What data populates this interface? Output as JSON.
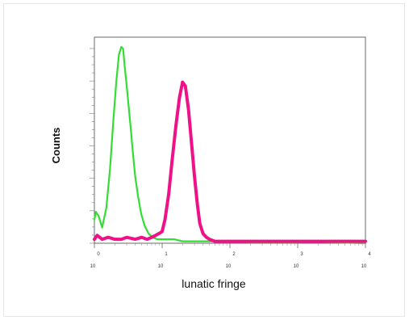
{
  "chart_data": {
    "type": "line",
    "title": "",
    "xlabel": "lunatic fringe",
    "ylabel": "Counts",
    "x_scale": "log",
    "xlim": [
      1,
      10000
    ],
    "ylim": [
      0,
      100
    ],
    "grid": false,
    "legend": "none",
    "x_ticks": [
      {
        "value": 1,
        "label": "10",
        "sup": "0"
      },
      {
        "value": 10,
        "label": "10",
        "sup": "1"
      },
      {
        "value": 100,
        "label": "10",
        "sup": "2"
      },
      {
        "value": 1000,
        "label": "10",
        "sup": "3"
      },
      {
        "value": 10000,
        "label": "10",
        "sup": "4"
      }
    ],
    "series": [
      {
        "color": "#33dd33",
        "x": [
          1.0,
          1.05,
          1.15,
          1.3,
          1.5,
          1.7,
          1.9,
          2.1,
          2.3,
          2.5,
          2.65,
          2.8,
          3.0,
          3.2,
          3.45,
          3.7,
          4.0,
          4.4,
          4.9,
          5.5,
          6.3,
          7.2,
          8.5,
          10,
          12,
          15,
          20,
          30,
          50,
          80,
          100,
          200,
          500,
          1000,
          1500,
          3000,
          10000
        ],
        "y": [
          12,
          16,
          14,
          8,
          18,
          38,
          62,
          82,
          96,
          100,
          99,
          90,
          80,
          70,
          58,
          46,
          34,
          24,
          15,
          9,
          5,
          3,
          2,
          2,
          2,
          2,
          1,
          1,
          1,
          1,
          1,
          0.5,
          0.5,
          0.5,
          1,
          0.5,
          0
        ]
      },
      {
        "color": "#ee1188",
        "x": [
          1.0,
          1.1,
          1.3,
          1.6,
          2,
          2.5,
          3,
          4,
          5,
          6,
          7,
          8,
          9,
          10,
          11,
          12.5,
          14,
          16,
          18,
          20,
          22,
          24.5,
          27,
          30,
          33,
          36,
          40,
          45,
          50,
          60,
          70,
          100,
          200,
          500,
          1000,
          3000,
          10000
        ],
        "y": [
          2,
          4,
          2,
          3,
          2,
          2,
          3,
          2,
          3,
          2,
          3,
          4,
          5,
          6,
          12,
          25,
          42,
          60,
          74,
          82,
          80,
          68,
          52,
          34,
          20,
          10,
          5,
          3,
          2,
          1,
          1,
          1,
          1,
          1,
          1,
          1,
          1
        ]
      }
    ]
  }
}
